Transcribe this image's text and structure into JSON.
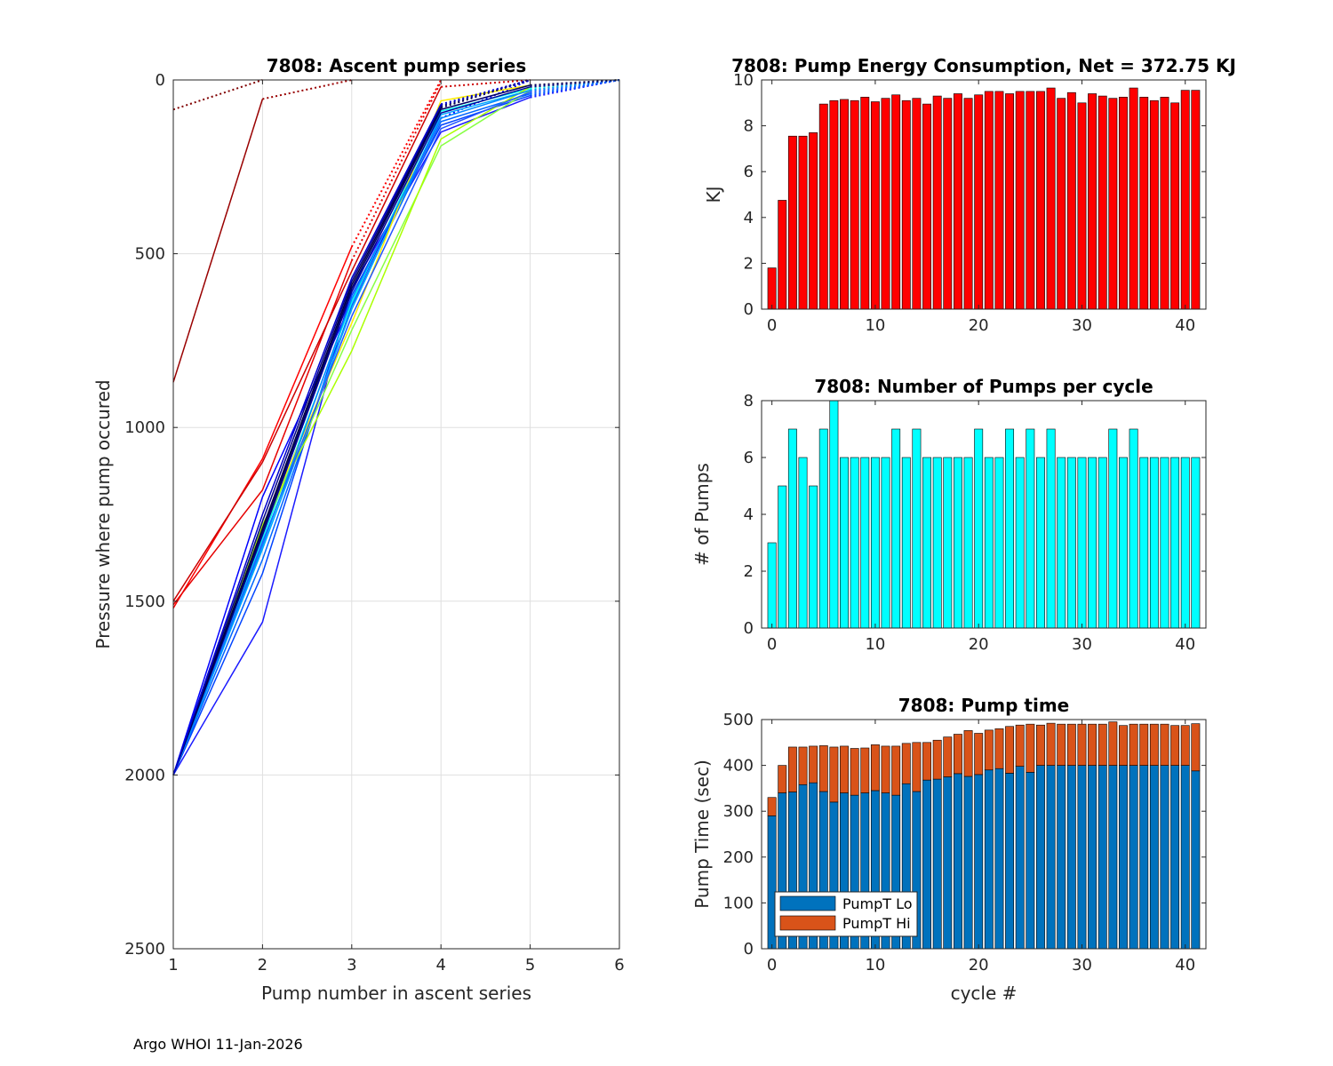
{
  "footer": "Argo WHOI 11-Jan-2026",
  "colors": {
    "energy_bar": "#ff0000",
    "pumps_bar": "#00ffff",
    "lo_bar": "#0072bd",
    "hi_bar": "#d95319"
  },
  "chart_data": [
    {
      "id": "ascent",
      "type": "line",
      "title": "7808: Ascent pump series",
      "xlabel": "Pump number in ascent series",
      "ylabel": "Pressure where pump occured",
      "xlim": [
        1,
        6
      ],
      "ylim": [
        0,
        2500
      ],
      "y_reversed": true,
      "xticks": [
        1,
        2,
        3,
        4,
        5,
        6
      ],
      "yticks": [
        0,
        500,
        1000,
        1500,
        2000,
        2500
      ],
      "grid": true,
      "series": [
        {
          "name": "c0",
          "color": "#800000",
          "x": [
            1,
            2
          ],
          "y": [
            85,
            0
          ]
        },
        {
          "name": "c1",
          "color": "#990000",
          "x": [
            1,
            2,
            3
          ],
          "y": [
            870,
            55,
            0
          ]
        },
        {
          "name": "c2",
          "color": "#ff0000",
          "x": [
            1,
            2,
            3,
            4
          ],
          "y": [
            1520,
            1090,
            480,
            0
          ]
        },
        {
          "name": "c3",
          "color": "#e60000",
          "x": [
            1,
            2,
            3,
            4
          ],
          "y": [
            1510,
            1180,
            520,
            5
          ]
        },
        {
          "name": "c4",
          "color": "#cc0000",
          "x": [
            1,
            2,
            3,
            4,
            5
          ],
          "y": [
            1500,
            1100,
            550,
            20,
            0
          ]
        },
        {
          "name": "c5",
          "color": "#0000ff",
          "x": [
            1,
            2,
            3,
            4,
            5
          ],
          "y": [
            2000,
            1200,
            640,
            110,
            0
          ]
        },
        {
          "name": "c6",
          "color": "#1a1aff",
          "x": [
            1,
            2,
            3,
            4,
            5,
            6
          ],
          "y": [
            2000,
            1560,
            600,
            150,
            50,
            0
          ]
        },
        {
          "name": "c7",
          "color": "#0044ff",
          "x": [
            1,
            2,
            3,
            4,
            5,
            6
          ],
          "y": [
            2000,
            1420,
            620,
            130,
            45,
            0
          ]
        },
        {
          "name": "c8",
          "color": "#0066ff",
          "x": [
            1,
            2,
            3,
            4,
            5,
            6
          ],
          "y": [
            2000,
            1380,
            650,
            120,
            40,
            0
          ]
        },
        {
          "name": "c9",
          "color": "#00aaff",
          "x": [
            1,
            2,
            3,
            4,
            5,
            6
          ],
          "y": [
            2000,
            1350,
            660,
            100,
            30,
            0
          ]
        },
        {
          "name": "c10",
          "color": "#00ffee",
          "x": [
            1,
            2,
            3,
            4,
            5,
            6
          ],
          "y": [
            2000,
            1320,
            640,
            90,
            25,
            0
          ]
        },
        {
          "name": "c11",
          "color": "#88ff44",
          "x": [
            1,
            2,
            3,
            4,
            5,
            6
          ],
          "y": [
            2000,
            1300,
            720,
            190,
            30,
            0
          ]
        },
        {
          "name": "c12",
          "color": "#aaff00",
          "x": [
            1,
            2,
            3,
            4,
            5,
            6
          ],
          "y": [
            2000,
            1280,
            780,
            170,
            20,
            0
          ]
        },
        {
          "name": "c13",
          "color": "#ffee00",
          "x": [
            1,
            2,
            3,
            4,
            5,
            6
          ],
          "y": [
            2000,
            1290,
            700,
            60,
            15,
            0
          ]
        },
        {
          "name": "c14",
          "color": "#2255ff",
          "x": [
            1,
            2,
            3,
            4,
            5,
            6
          ],
          "y": [
            2000,
            1330,
            680,
            140,
            35,
            0
          ]
        },
        {
          "name": "c15",
          "color": "#0088ff",
          "x": [
            1,
            2,
            3,
            4,
            5,
            6
          ],
          "y": [
            2000,
            1340,
            630,
            110,
            30,
            0
          ]
        },
        {
          "name": "c16",
          "color": "#000099",
          "x": [
            1,
            2,
            3,
            4,
            5,
            6
          ],
          "y": [
            2000,
            1310,
            610,
            95,
            20,
            0
          ]
        },
        {
          "name": "c17",
          "color": "#000066",
          "x": [
            1,
            2,
            3,
            4,
            5,
            6
          ],
          "y": [
            2000,
            1300,
            600,
            85,
            15,
            0
          ]
        },
        {
          "name": "c18",
          "color": "#000044",
          "x": [
            1,
            2,
            3,
            4,
            5
          ],
          "y": [
            2000,
            1290,
            590,
            80,
            0
          ]
        },
        {
          "name": "c19",
          "color": "#000088",
          "x": [
            1,
            2,
            3,
            4,
            5
          ],
          "y": [
            2000,
            1270,
            580,
            75,
            0
          ]
        },
        {
          "name": "c20",
          "color": "#0000cc",
          "x": [
            1,
            2,
            3,
            4,
            5
          ],
          "y": [
            2000,
            1250,
            570,
            70,
            0
          ]
        }
      ]
    },
    {
      "id": "energy",
      "type": "bar",
      "title": "7808: Pump Energy Consumption,  Net = 372.75 KJ",
      "xlabel": "",
      "ylabel": "KJ",
      "xlim": [
        -1,
        42
      ],
      "ylim": [
        0,
        10
      ],
      "xticks": [
        0,
        10,
        20,
        30,
        40
      ],
      "yticks": [
        0,
        2,
        4,
        6,
        8,
        10
      ],
      "x": [
        0,
        1,
        2,
        3,
        4,
        5,
        6,
        7,
        8,
        9,
        10,
        11,
        12,
        13,
        14,
        15,
        16,
        17,
        18,
        19,
        20,
        21,
        22,
        23,
        24,
        25,
        26,
        27,
        28,
        29,
        30,
        31,
        32,
        33,
        34,
        35,
        36,
        37,
        38,
        39,
        40,
        41
      ],
      "values": [
        1.8,
        4.75,
        7.55,
        7.55,
        7.7,
        8.95,
        9.1,
        9.15,
        9.1,
        9.25,
        9.05,
        9.2,
        9.35,
        9.1,
        9.2,
        8.95,
        9.3,
        9.2,
        9.4,
        9.2,
        9.35,
        9.5,
        9.5,
        9.4,
        9.5,
        9.5,
        9.5,
        9.65,
        9.2,
        9.45,
        9.0,
        9.4,
        9.3,
        9.2,
        9.25,
        9.65,
        9.25,
        9.1,
        9.25,
        9.0,
        9.55,
        9.55
      ]
    },
    {
      "id": "pumps",
      "type": "bar",
      "title": "7808: Number of Pumps per cycle",
      "xlabel": "",
      "ylabel": "# of Pumps",
      "xlim": [
        -1,
        42
      ],
      "ylim": [
        0,
        8
      ],
      "xticks": [
        0,
        10,
        20,
        30,
        40
      ],
      "yticks": [
        0,
        2,
        4,
        6,
        8
      ],
      "x": [
        0,
        1,
        2,
        3,
        4,
        5,
        6,
        7,
        8,
        9,
        10,
        11,
        12,
        13,
        14,
        15,
        16,
        17,
        18,
        19,
        20,
        21,
        22,
        23,
        24,
        25,
        26,
        27,
        28,
        29,
        30,
        31,
        32,
        33,
        34,
        35,
        36,
        37,
        38,
        39,
        40,
        41
      ],
      "values": [
        3,
        5,
        7,
        6,
        5,
        7,
        8,
        6,
        6,
        6,
        6,
        6,
        7,
        6,
        7,
        6,
        6,
        6,
        6,
        6,
        7,
        6,
        6,
        7,
        6,
        7,
        6,
        7,
        6,
        6,
        6,
        6,
        6,
        7,
        6,
        7,
        6,
        6,
        6,
        6,
        6,
        6
      ]
    },
    {
      "id": "pumptime",
      "type": "bar",
      "stacked": true,
      "title": "7808: Pump time",
      "xlabel": "cycle #",
      "ylabel": "Pump Time (sec)",
      "xlim": [
        -1,
        42
      ],
      "ylim": [
        0,
        500
      ],
      "xticks": [
        0,
        10,
        20,
        30,
        40
      ],
      "yticks": [
        0,
        100,
        200,
        300,
        400,
        500
      ],
      "legend_position": "bottom-left",
      "x": [
        0,
        1,
        2,
        3,
        4,
        5,
        6,
        7,
        8,
        9,
        10,
        11,
        12,
        13,
        14,
        15,
        16,
        17,
        18,
        19,
        20,
        21,
        22,
        23,
        24,
        25,
        26,
        27,
        28,
        29,
        30,
        31,
        32,
        33,
        34,
        35,
        36,
        37,
        38,
        39,
        40,
        41
      ],
      "series": [
        {
          "name": "PumpT Lo",
          "values": [
            290,
            340,
            342,
            358,
            362,
            343,
            320,
            340,
            335,
            340,
            345,
            340,
            335,
            360,
            343,
            368,
            370,
            375,
            382,
            376,
            380,
            390,
            393,
            383,
            398,
            385,
            400,
            400,
            400,
            400,
            400,
            400,
            400,
            400,
            400,
            400,
            400,
            400,
            400,
            400,
            400,
            388
          ]
        },
        {
          "name": "PumpT Hi",
          "values": [
            40,
            60,
            98,
            82,
            80,
            100,
            120,
            102,
            102,
            98,
            100,
            102,
            107,
            88,
            107,
            82,
            85,
            87,
            86,
            100,
            90,
            87,
            87,
            102,
            90,
            105,
            88,
            92,
            90,
            90,
            90,
            90,
            90,
            95,
            87,
            90,
            90,
            90,
            90,
            87,
            87,
            103
          ]
        }
      ]
    }
  ]
}
